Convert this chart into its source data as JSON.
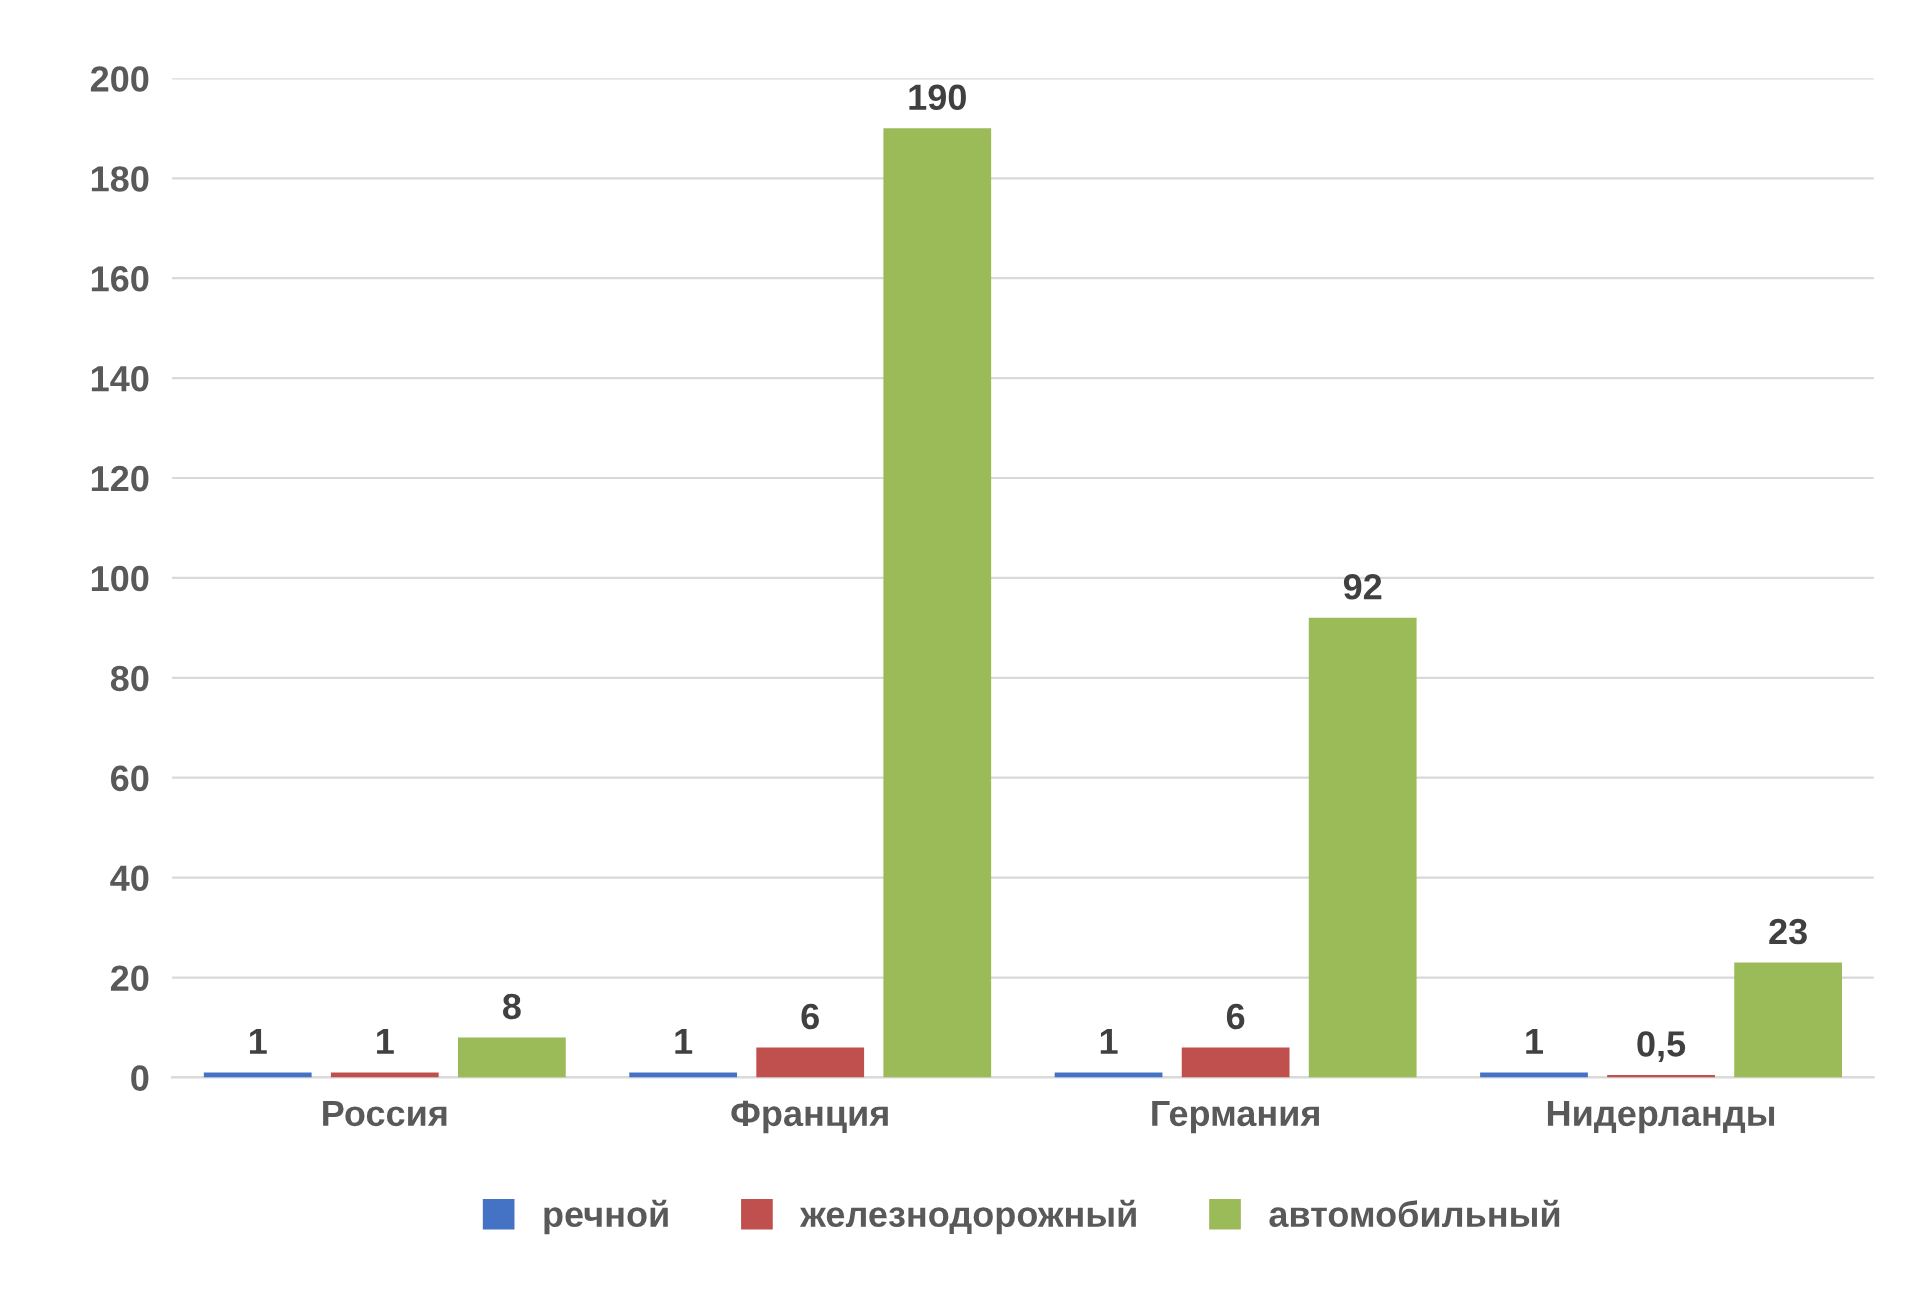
{
  "chart_data": {
    "type": "bar",
    "categories": [
      "Россия",
      "Франция",
      "Германия",
      "Нидерланды"
    ],
    "series": [
      {
        "name": "речной",
        "color": "#4472c4",
        "values": [
          1,
          1,
          1,
          1
        ],
        "value_labels": [
          "1",
          "1",
          "1",
          "1"
        ]
      },
      {
        "name": "железнодорожный",
        "color": "#c0504d",
        "values": [
          1,
          6,
          6,
          0.5
        ],
        "value_labels": [
          "1",
          "6",
          "6",
          "0,5"
        ]
      },
      {
        "name": "автомобильный",
        "color": "#9bbb59",
        "values": [
          8,
          190,
          92,
          23
        ],
        "value_labels": [
          "8",
          "190",
          "92",
          "23"
        ]
      }
    ],
    "ylim": [
      0,
      200
    ],
    "yticks": [
      0,
      20,
      40,
      60,
      80,
      100,
      120,
      140,
      160,
      180,
      200
    ],
    "grid": "y",
    "legend": "bottom"
  }
}
